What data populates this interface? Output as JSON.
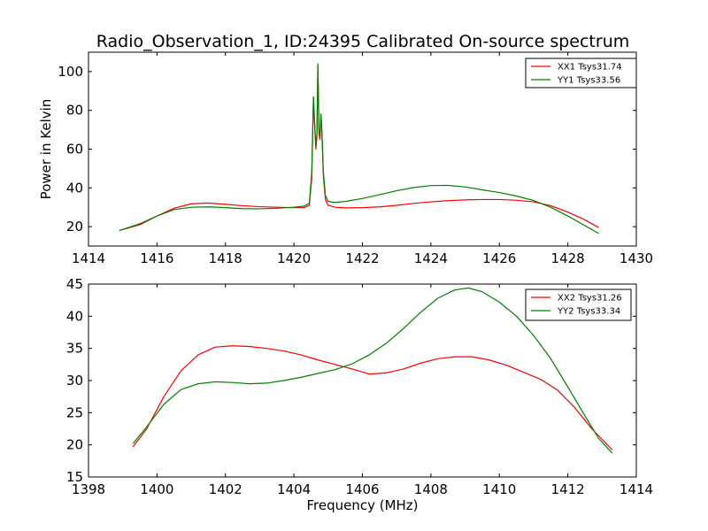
{
  "figure_title": "Radio_Observation_1, ID:24395 Calibrated On-source spectrum",
  "chart_data": [
    {
      "type": "line",
      "title": "Radio_Observation_1, ID:24395 Calibrated On-source spectrum",
      "xlabel": "",
      "ylabel": "Power in Kelvin",
      "xlim": [
        1414,
        1430
      ],
      "ylim": [
        10,
        110
      ],
      "xticks": [
        1414,
        1416,
        1418,
        1420,
        1422,
        1424,
        1426,
        1428,
        1430
      ],
      "yticks": [
        20,
        40,
        60,
        80,
        100
      ],
      "grid": false,
      "legend_position": "top-right",
      "series": [
        {
          "name": "XX1 Tsys31.74",
          "color": "#ff0000",
          "points": [
            [
              1414.9,
              18
            ],
            [
              1415.5,
              21
            ],
            [
              1416,
              25.5
            ],
            [
              1416.5,
              29.5
            ],
            [
              1417,
              31.8
            ],
            [
              1417.5,
              32.2
            ],
            [
              1418,
              31.5
            ],
            [
              1418.5,
              30.8
            ],
            [
              1419,
              30.3
            ],
            [
              1419.5,
              30
            ],
            [
              1420,
              29.8
            ],
            [
              1420.3,
              29.9
            ],
            [
              1420.45,
              31
            ],
            [
              1420.52,
              45
            ],
            [
              1420.57,
              87
            ],
            [
              1420.61,
              70
            ],
            [
              1420.64,
              60
            ],
            [
              1420.67,
              66
            ],
            [
              1420.7,
              103
            ],
            [
              1420.73,
              68
            ],
            [
              1420.76,
              65
            ],
            [
              1420.79,
              78
            ],
            [
              1420.82,
              66
            ],
            [
              1420.86,
              46
            ],
            [
              1420.92,
              34
            ],
            [
              1421,
              31
            ],
            [
              1421.2,
              30
            ],
            [
              1421.5,
              29.7
            ],
            [
              1422,
              29.8
            ],
            [
              1422.5,
              30.2
            ],
            [
              1423,
              31
            ],
            [
              1423.5,
              32
            ],
            [
              1424,
              32.8
            ],
            [
              1424.5,
              33.4
            ],
            [
              1425,
              33.8
            ],
            [
              1425.5,
              34
            ],
            [
              1426,
              34
            ],
            [
              1426.5,
              33.6
            ],
            [
              1427,
              32.8
            ],
            [
              1427.5,
              30.8
            ],
            [
              1428,
              27.5
            ],
            [
              1428.5,
              23.5
            ],
            [
              1428.9,
              19.5
            ]
          ]
        },
        {
          "name": "YY1 Tsys33.56",
          "color": "#008000",
          "points": [
            [
              1414.9,
              18
            ],
            [
              1415.5,
              21.5
            ],
            [
              1416,
              25.5
            ],
            [
              1416.5,
              28.8
            ],
            [
              1417,
              30
            ],
            [
              1417.5,
              30.2
            ],
            [
              1418,
              29.8
            ],
            [
              1418.5,
              29.3
            ],
            [
              1419,
              29.2
            ],
            [
              1419.5,
              29.5
            ],
            [
              1420,
              30
            ],
            [
              1420.3,
              30.6
            ],
            [
              1420.45,
              32
            ],
            [
              1420.52,
              48
            ],
            [
              1420.57,
              87
            ],
            [
              1420.61,
              72
            ],
            [
              1420.64,
              62
            ],
            [
              1420.67,
              68
            ],
            [
              1420.7,
              104
            ],
            [
              1420.73,
              70
            ],
            [
              1420.76,
              67
            ],
            [
              1420.79,
              78
            ],
            [
              1420.82,
              68
            ],
            [
              1420.86,
              48
            ],
            [
              1420.92,
              36
            ],
            [
              1421,
              33
            ],
            [
              1421.2,
              32.5
            ],
            [
              1421.5,
              33
            ],
            [
              1422,
              34.5
            ],
            [
              1422.5,
              36.5
            ],
            [
              1423,
              38.5
            ],
            [
              1423.5,
              40.2
            ],
            [
              1424,
              41.2
            ],
            [
              1424.5,
              41.3
            ],
            [
              1425,
              40.5
            ],
            [
              1425.5,
              39
            ],
            [
              1426,
              37.6
            ],
            [
              1426.5,
              35.8
            ],
            [
              1427,
              33.5
            ],
            [
              1427.5,
              30
            ],
            [
              1428,
              25.5
            ],
            [
              1428.5,
              20.5
            ],
            [
              1428.9,
              16.5
            ]
          ]
        }
      ]
    },
    {
      "type": "line",
      "title": "",
      "xlabel": "Frequency (MHz)",
      "ylabel": "",
      "xlim": [
        1398,
        1414
      ],
      "ylim": [
        15,
        45
      ],
      "xticks": [
        1398,
        1400,
        1402,
        1404,
        1406,
        1408,
        1410,
        1412,
        1414
      ],
      "yticks": [
        15,
        20,
        25,
        30,
        35,
        40,
        45
      ],
      "grid": false,
      "legend_position": "top-right",
      "series": [
        {
          "name": "XX2 Tsys31.26",
          "color": "#ff0000",
          "points": [
            [
              1399.3,
              19.7
            ],
            [
              1399.7,
              22.5
            ],
            [
              1400.2,
              27.5
            ],
            [
              1400.7,
              31.5
            ],
            [
              1401.2,
              34
            ],
            [
              1401.7,
              35.2
            ],
            [
              1402.2,
              35.4
            ],
            [
              1402.7,
              35.3
            ],
            [
              1403.2,
              35
            ],
            [
              1403.7,
              34.6
            ],
            [
              1404.2,
              34
            ],
            [
              1404.7,
              33.2
            ],
            [
              1405.2,
              32.5
            ],
            [
              1405.7,
              31.8
            ],
            [
              1406.2,
              31
            ],
            [
              1406.7,
              31.2
            ],
            [
              1407.2,
              31.8
            ],
            [
              1407.7,
              32.7
            ],
            [
              1408.2,
              33.4
            ],
            [
              1408.7,
              33.7
            ],
            [
              1409.2,
              33.7
            ],
            [
              1409.7,
              33.2
            ],
            [
              1410.2,
              32.4
            ],
            [
              1410.7,
              31.3
            ],
            [
              1411.2,
              30.2
            ],
            [
              1411.7,
              28.5
            ],
            [
              1412.2,
              25.8
            ],
            [
              1412.7,
              22.5
            ],
            [
              1413.3,
              19.2
            ]
          ]
        },
        {
          "name": "YY2 Tsys33.34",
          "color": "#008000",
          "points": [
            [
              1399.3,
              20.2
            ],
            [
              1399.7,
              22.8
            ],
            [
              1400.2,
              26.3
            ],
            [
              1400.7,
              28.6
            ],
            [
              1401.2,
              29.5
            ],
            [
              1401.7,
              29.8
            ],
            [
              1402.2,
              29.7
            ],
            [
              1402.7,
              29.5
            ],
            [
              1403.2,
              29.6
            ],
            [
              1403.7,
              30
            ],
            [
              1404.2,
              30.5
            ],
            [
              1404.7,
              31.1
            ],
            [
              1405.2,
              31.7
            ],
            [
              1405.7,
              32.6
            ],
            [
              1406.2,
              34
            ],
            [
              1406.7,
              35.8
            ],
            [
              1407.2,
              38.1
            ],
            [
              1407.7,
              40.6
            ],
            [
              1408.2,
              42.8
            ],
            [
              1408.7,
              44.1
            ],
            [
              1409.1,
              44.4
            ],
            [
              1409.5,
              43.8
            ],
            [
              1410,
              42.2
            ],
            [
              1410.5,
              40
            ],
            [
              1411,
              37
            ],
            [
              1411.5,
              33.4
            ],
            [
              1412,
              29
            ],
            [
              1412.5,
              24.5
            ],
            [
              1412.9,
              21
            ],
            [
              1413.3,
              18.7
            ]
          ]
        }
      ]
    }
  ]
}
